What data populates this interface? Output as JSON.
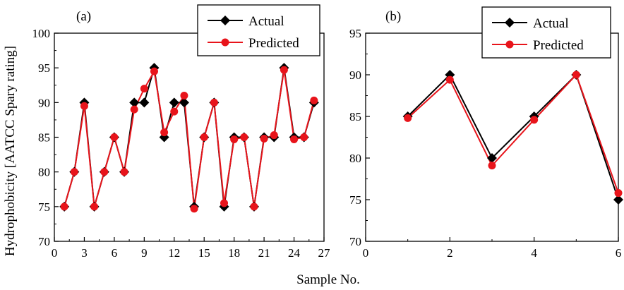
{
  "chart_data": [
    {
      "type": "line",
      "panel_label": "(a)",
      "xlabel": "Sample No.",
      "ylabel": "Hydrophobicity [AATCC Spary rating]",
      "xlim": [
        0,
        27
      ],
      "ylim": [
        70,
        100
      ],
      "xticks": [
        0,
        3,
        6,
        9,
        12,
        15,
        18,
        21,
        24,
        27
      ],
      "yticks": [
        70,
        75,
        80,
        85,
        90,
        95,
        100
      ],
      "legend_position": "top-right",
      "x": [
        1,
        2,
        3,
        4,
        5,
        6,
        7,
        8,
        9,
        10,
        11,
        12,
        13,
        14,
        15,
        16,
        17,
        18,
        19,
        20,
        21,
        22,
        23,
        24,
        25,
        26
      ],
      "series": [
        {
          "name": "Actual",
          "color": "#000000",
          "marker": "diamond",
          "values": [
            75,
            80,
            90,
            75,
            80,
            85,
            80,
            90,
            90,
            95,
            85,
            90,
            90,
            75,
            85,
            90,
            75,
            85,
            85,
            75,
            85,
            85,
            95,
            85,
            85,
            90
          ]
        },
        {
          "name": "Predicted",
          "color": "#e8141b",
          "marker": "circle",
          "values": [
            75,
            80,
            89.5,
            75,
            80,
            85,
            80,
            89,
            92,
            94.5,
            85.7,
            88.7,
            91,
            74.7,
            85,
            90,
            75.5,
            84.7,
            85,
            75,
            84.8,
            85.3,
            94.7,
            84.7,
            85,
            90.3
          ]
        }
      ]
    },
    {
      "type": "line",
      "panel_label": "(b)",
      "xlabel": "",
      "ylabel": "",
      "xlim": [
        0,
        6
      ],
      "ylim": [
        70,
        95
      ],
      "xticks": [
        0,
        2,
        4,
        6
      ],
      "yticks": [
        70,
        75,
        80,
        85,
        90,
        95
      ],
      "legend_position": "top-right",
      "x": [
        1,
        2,
        3,
        4,
        5,
        6
      ],
      "series": [
        {
          "name": "Actual",
          "color": "#000000",
          "marker": "diamond",
          "values": [
            85,
            90,
            80,
            85,
            90,
            75
          ]
        },
        {
          "name": "Predicted",
          "color": "#e8141b",
          "marker": "circle",
          "values": [
            84.8,
            89.4,
            79.1,
            84.6,
            90,
            75.8
          ]
        }
      ]
    }
  ]
}
